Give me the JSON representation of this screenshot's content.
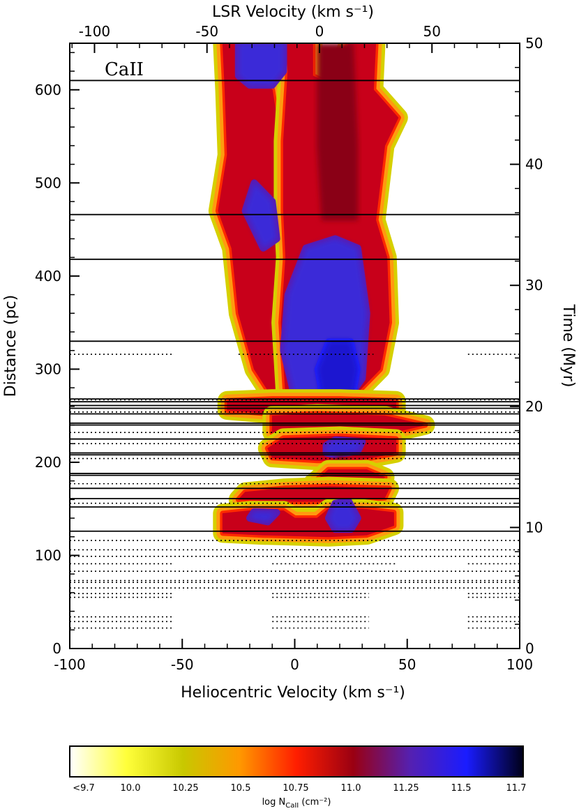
{
  "chart_data": {
    "type": "heatmap",
    "panel_label": "CaII",
    "xlabel_bottom": "Heliocentric Velocity (km s⁻¹)",
    "xlabel_top": "LSR Velocity (km s⁻¹)",
    "ylabel_left": "Distance (pc)",
    "ylabel_right": "Time (Myr)",
    "xlim": [
      -100,
      100
    ],
    "ylim": [
      0,
      650
    ],
    "x_ticks": [
      "-100",
      "-50",
      "0",
      "50",
      "100"
    ],
    "x_tick_values": [
      -100,
      -50,
      0,
      50,
      100
    ],
    "y_ticks": [
      "0",
      "100",
      "200",
      "300",
      "400",
      "500",
      "600"
    ],
    "y_tick_values": [
      0,
      100,
      200,
      300,
      400,
      500,
      600
    ],
    "top_ticks": [
      "-100",
      "-50",
      "0",
      "50"
    ],
    "top_tick_values": [
      -100,
      -50,
      0,
      50
    ],
    "top_offset": 11,
    "right_ticks": [
      "0",
      "10",
      "20",
      "30",
      "40",
      "50"
    ],
    "right_tick_values": [
      0,
      10,
      20,
      30,
      40,
      50
    ],
    "pc_per_myr": 13,
    "colorbar": {
      "label": "log N_CaII (cm⁻²)",
      "label_main": "log N",
      "label_sub": "CaII",
      "label_unit": " (cm⁻²)",
      "ticks": [
        "<9.7",
        "10.0",
        "10.25",
        "10.5",
        "10.75",
        "11.0",
        "11.25",
        "11.5",
        "11.7"
      ],
      "stops": [
        "#ffffff",
        "#ffff3a",
        "#c8c800",
        "#ff9800",
        "#ff1e00",
        "#9a0012",
        "#5520b0",
        "#1a1cff",
        "#000018"
      ]
    },
    "solid_sightlines_pc": [
      610,
      466,
      418,
      330,
      268,
      265,
      261,
      258,
      252,
      242,
      240,
      225,
      210,
      208,
      188,
      186,
      172,
      161,
      152,
      126
    ],
    "dotted_sightlines": [
      {
        "y": 316,
        "segs": [
          [
            -100,
            -54
          ],
          [
            -25,
            35
          ],
          [
            77,
            100
          ]
        ]
      },
      {
        "y": 267,
        "segs": [
          [
            -100,
            100
          ]
        ]
      },
      {
        "y": 254,
        "segs": [
          [
            -100,
            100
          ]
        ]
      },
      {
        "y": 232,
        "segs": [
          [
            -100,
            100
          ]
        ]
      },
      {
        "y": 220,
        "segs": [
          [
            -100,
            100
          ]
        ]
      },
      {
        "y": 204,
        "segs": [
          [
            -100,
            100
          ]
        ]
      },
      {
        "y": 177,
        "segs": [
          [
            -100,
            100
          ]
        ]
      },
      {
        "y": 156,
        "segs": [
          [
            -100,
            100
          ]
        ]
      },
      {
        "y": 116,
        "segs": [
          [
            -100,
            100
          ]
        ]
      },
      {
        "y": 106,
        "segs": [
          [
            -100,
            100
          ]
        ]
      },
      {
        "y": 99,
        "segs": [
          [
            -100,
            100
          ]
        ]
      },
      {
        "y": 91,
        "segs": [
          [
            -100,
            -54
          ],
          [
            -10,
            45
          ],
          [
            77,
            100
          ]
        ]
      },
      {
        "y": 83,
        "segs": [
          [
            -100,
            100
          ]
        ]
      },
      {
        "y": 73,
        "segs": [
          [
            -100,
            100
          ]
        ]
      },
      {
        "y": 71,
        "segs": [
          [
            -100,
            100
          ]
        ]
      },
      {
        "y": 65,
        "segs": [
          [
            -100,
            100
          ]
        ]
      },
      {
        "y": 59,
        "segs": [
          [
            -100,
            -54
          ],
          [
            -10,
            33
          ],
          [
            77,
            100
          ]
        ]
      },
      {
        "y": 55,
        "segs": [
          [
            -100,
            -54
          ],
          [
            -10,
            33
          ],
          [
            77,
            100
          ]
        ]
      },
      {
        "y": 34,
        "segs": [
          [
            -100,
            -54
          ],
          [
            -10,
            33
          ],
          [
            77,
            100
          ]
        ]
      },
      {
        "y": 29,
        "segs": [
          [
            -100,
            -54
          ],
          [
            -10,
            33
          ],
          [
            77,
            100
          ]
        ]
      },
      {
        "y": 22,
        "segs": [
          [
            -100,
            -54
          ],
          [
            -10,
            33
          ],
          [
            77,
            100
          ]
        ]
      }
    ],
    "components": [
      {
        "name": "left-main",
        "level": "mid",
        "points": [
          [
            -10,
            270
          ],
          [
            -18,
            300
          ],
          [
            -25,
            360
          ],
          [
            -28,
            430
          ],
          [
            -34,
            470
          ],
          [
            -30,
            530
          ],
          [
            -31,
            600
          ],
          [
            -32,
            650
          ],
          [
            -20,
            650
          ],
          [
            -18,
            615
          ],
          [
            -10,
            600
          ],
          [
            -6,
            540
          ],
          [
            -5,
            470
          ],
          [
            -4,
            420
          ],
          [
            -4,
            350
          ],
          [
            -6,
            300
          ]
        ]
      },
      {
        "name": "right-main",
        "level": "mid",
        "points": [
          [
            -4,
            270
          ],
          [
            -6,
            350
          ],
          [
            -4,
            420
          ],
          [
            -5,
            470
          ],
          [
            -5,
            545
          ],
          [
            -3,
            620
          ],
          [
            -4,
            650
          ],
          [
            8,
            650
          ],
          [
            8,
            615
          ],
          [
            12,
            610
          ],
          [
            18,
            612
          ],
          [
            24,
            650
          ],
          [
            36,
            650
          ],
          [
            35,
            600
          ],
          [
            46,
            570
          ],
          [
            40,
            540
          ],
          [
            36,
            460
          ],
          [
            41,
            420
          ],
          [
            42,
            350
          ],
          [
            38,
            300
          ],
          [
            25,
            268
          ]
        ]
      },
      {
        "name": "left-blue-top",
        "level": "high",
        "points": [
          [
            -25,
            650
          ],
          [
            -25,
            615
          ],
          [
            -20,
            605
          ],
          [
            -10,
            605
          ],
          [
            -5,
            620
          ],
          [
            -5,
            650
          ]
        ]
      },
      {
        "name": "right-dark-top",
        "level": "dark",
        "points": [
          [
            10,
            650
          ],
          [
            10,
            540
          ],
          [
            12,
            460
          ],
          [
            28,
            460
          ],
          [
            28,
            540
          ],
          [
            26,
            650
          ]
        ]
      },
      {
        "name": "left-blue-mid",
        "level": "high",
        "points": [
          [
            -14,
            430
          ],
          [
            -22,
            470
          ],
          [
            -18,
            500
          ],
          [
            -10,
            480
          ],
          [
            -8,
            440
          ]
        ]
      },
      {
        "name": "center-blue",
        "level": "high",
        "points": [
          [
            0,
            270
          ],
          [
            -5,
            320
          ],
          [
            -3,
            380
          ],
          [
            5,
            430
          ],
          [
            18,
            440
          ],
          [
            28,
            430
          ],
          [
            32,
            360
          ],
          [
            30,
            290
          ],
          [
            24,
            270
          ]
        ]
      },
      {
        "name": "deep-blue-core",
        "level": "deep",
        "points": [
          [
            12,
            272
          ],
          [
            10,
            300
          ],
          [
            15,
            330
          ],
          [
            25,
            330
          ],
          [
            28,
            300
          ],
          [
            26,
            272
          ]
        ]
      },
      {
        "name": "band-258",
        "level": "mid",
        "points": [
          [
            -30,
            256
          ],
          [
            -10,
            252
          ],
          [
            20,
            252
          ],
          [
            45,
            256
          ],
          [
            45,
            266
          ],
          [
            20,
            268
          ],
          [
            -10,
            268
          ],
          [
            -30,
            266
          ]
        ]
      },
      {
        "name": "band-240",
        "level": "mid",
        "points": [
          [
            -10,
            232
          ],
          [
            10,
            228
          ],
          [
            40,
            230
          ],
          [
            58,
            240
          ],
          [
            40,
            250
          ],
          [
            10,
            252
          ],
          [
            -10,
            250
          ]
        ]
      },
      {
        "name": "band-215",
        "level": "mid",
        "points": [
          [
            -10,
            205
          ],
          [
            10,
            202
          ],
          [
            30,
            203
          ],
          [
            45,
            210
          ],
          [
            45,
            225
          ],
          [
            20,
            228
          ],
          [
            -5,
            226
          ],
          [
            -12,
            215
          ]
        ]
      },
      {
        "name": "band-215-blue",
        "level": "high",
        "points": [
          [
            14,
            210
          ],
          [
            18,
            208
          ],
          [
            28,
            212
          ],
          [
            30,
            222
          ],
          [
            18,
            224
          ],
          [
            14,
            218
          ]
        ]
      },
      {
        "name": "stem-200",
        "level": "dark",
        "points": [
          [
            18,
            188
          ],
          [
            17,
            200
          ],
          [
            20,
            208
          ],
          [
            25,
            200
          ],
          [
            24,
            188
          ]
        ]
      },
      {
        "name": "band-180",
        "level": "mid",
        "points": [
          [
            8,
            177
          ],
          [
            20,
            172
          ],
          [
            34,
            174
          ],
          [
            40,
            184
          ],
          [
            32,
            192
          ],
          [
            15,
            192
          ]
        ]
      },
      {
        "name": "band-165",
        "level": "mid",
        "points": [
          [
            -25,
            160
          ],
          [
            0,
            158
          ],
          [
            20,
            158
          ],
          [
            40,
            162
          ],
          [
            42,
            172
          ],
          [
            15,
            174
          ],
          [
            -5,
            172
          ],
          [
            -22,
            168
          ]
        ]
      },
      {
        "name": "band-140",
        "level": "mid",
        "points": [
          [
            -32,
            124
          ],
          [
            -15,
            122
          ],
          [
            15,
            120
          ],
          [
            32,
            122
          ],
          [
            44,
            132
          ],
          [
            44,
            146
          ],
          [
            30,
            150
          ],
          [
            15,
            150
          ],
          [
            10,
            140
          ],
          [
            0,
            140
          ],
          [
            -5,
            148
          ],
          [
            -20,
            148
          ],
          [
            -32,
            145
          ]
        ]
      },
      {
        "name": "blue-140",
        "level": "high",
        "points": [
          [
            -20,
            140
          ],
          [
            -12,
            136
          ],
          [
            -8,
            146
          ],
          [
            -18,
            147
          ]
        ]
      },
      {
        "name": "blue-150",
        "level": "high",
        "points": [
          [
            18,
            128
          ],
          [
            15,
            140
          ],
          [
            18,
            156
          ],
          [
            24,
            158
          ],
          [
            28,
            140
          ],
          [
            25,
            128
          ]
        ]
      }
    ]
  }
}
